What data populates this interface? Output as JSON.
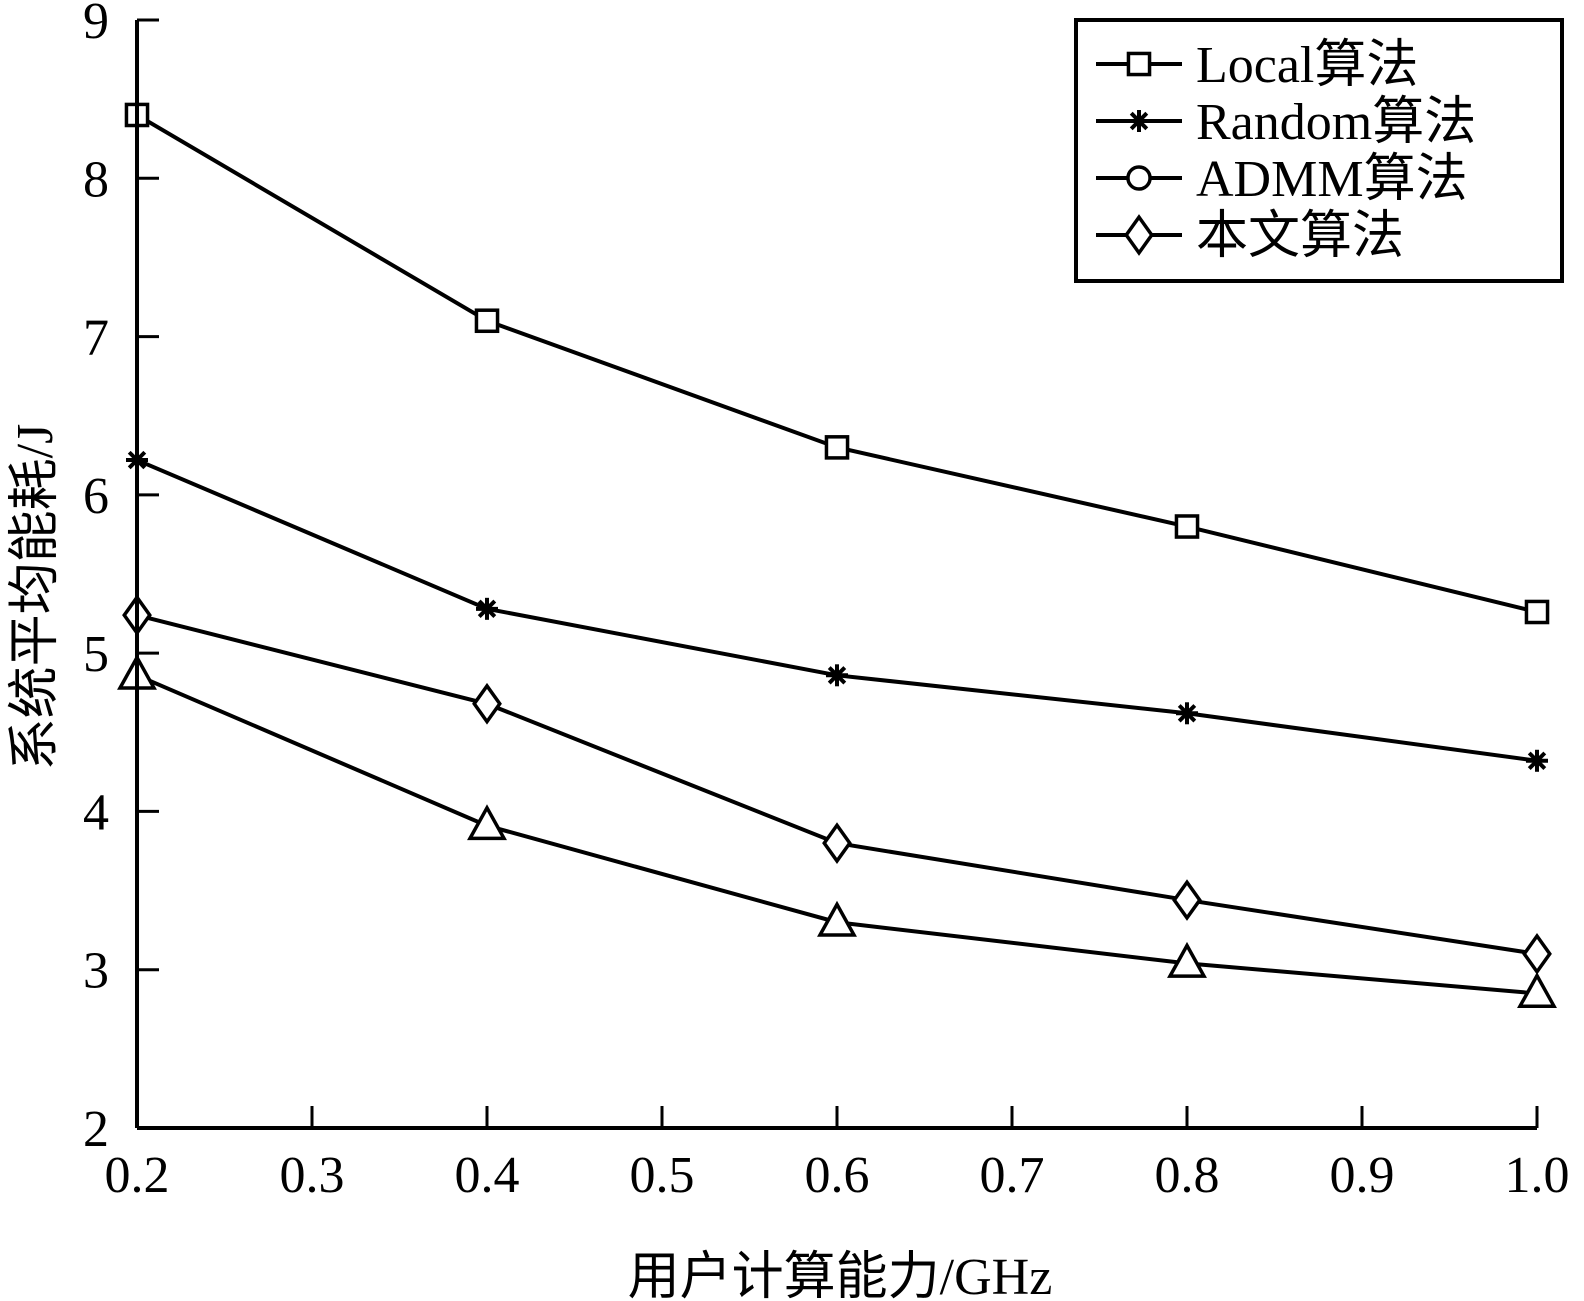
{
  "chart_data": {
    "type": "line",
    "xlabel": "用户计算能力/GHz",
    "ylabel": "系统平均能耗/J",
    "xlim": [
      0.2,
      1.0
    ],
    "ylim": [
      2,
      9
    ],
    "xticks": [
      0.2,
      0.3,
      0.4,
      0.5,
      0.6,
      0.7,
      0.8,
      0.9,
      1.0
    ],
    "xtick_labels": [
      "0.2",
      "0.3",
      "0.4",
      "0.5",
      "0.6",
      "0.7",
      "0.8",
      "0.9",
      "1.0"
    ],
    "yticks": [
      2,
      3,
      4,
      5,
      6,
      7,
      8,
      9
    ],
    "ytick_labels": [
      "2",
      "3",
      "4",
      "5",
      "6",
      "7",
      "8",
      "9"
    ],
    "x": [
      0.2,
      0.4,
      0.6,
      0.8,
      1.0
    ],
    "legend_position": "top-right",
    "grid": false,
    "series": [
      {
        "name": "Local算法",
        "marker": "square",
        "values": [
          8.4,
          7.1,
          6.3,
          5.8,
          5.26
        ]
      },
      {
        "name": "Random算法",
        "marker": "star",
        "values": [
          6.22,
          5.28,
          4.86,
          4.62,
          4.32
        ]
      },
      {
        "name": "ADMM算法",
        "marker": "circle",
        "values": [
          4.86,
          3.91,
          3.3,
          3.04,
          2.85
        ],
        "plotted_marker": "triangle"
      },
      {
        "name": "本文算法",
        "marker": "diamond",
        "values": [
          5.24,
          4.68,
          3.8,
          3.44,
          3.1
        ]
      }
    ]
  }
}
